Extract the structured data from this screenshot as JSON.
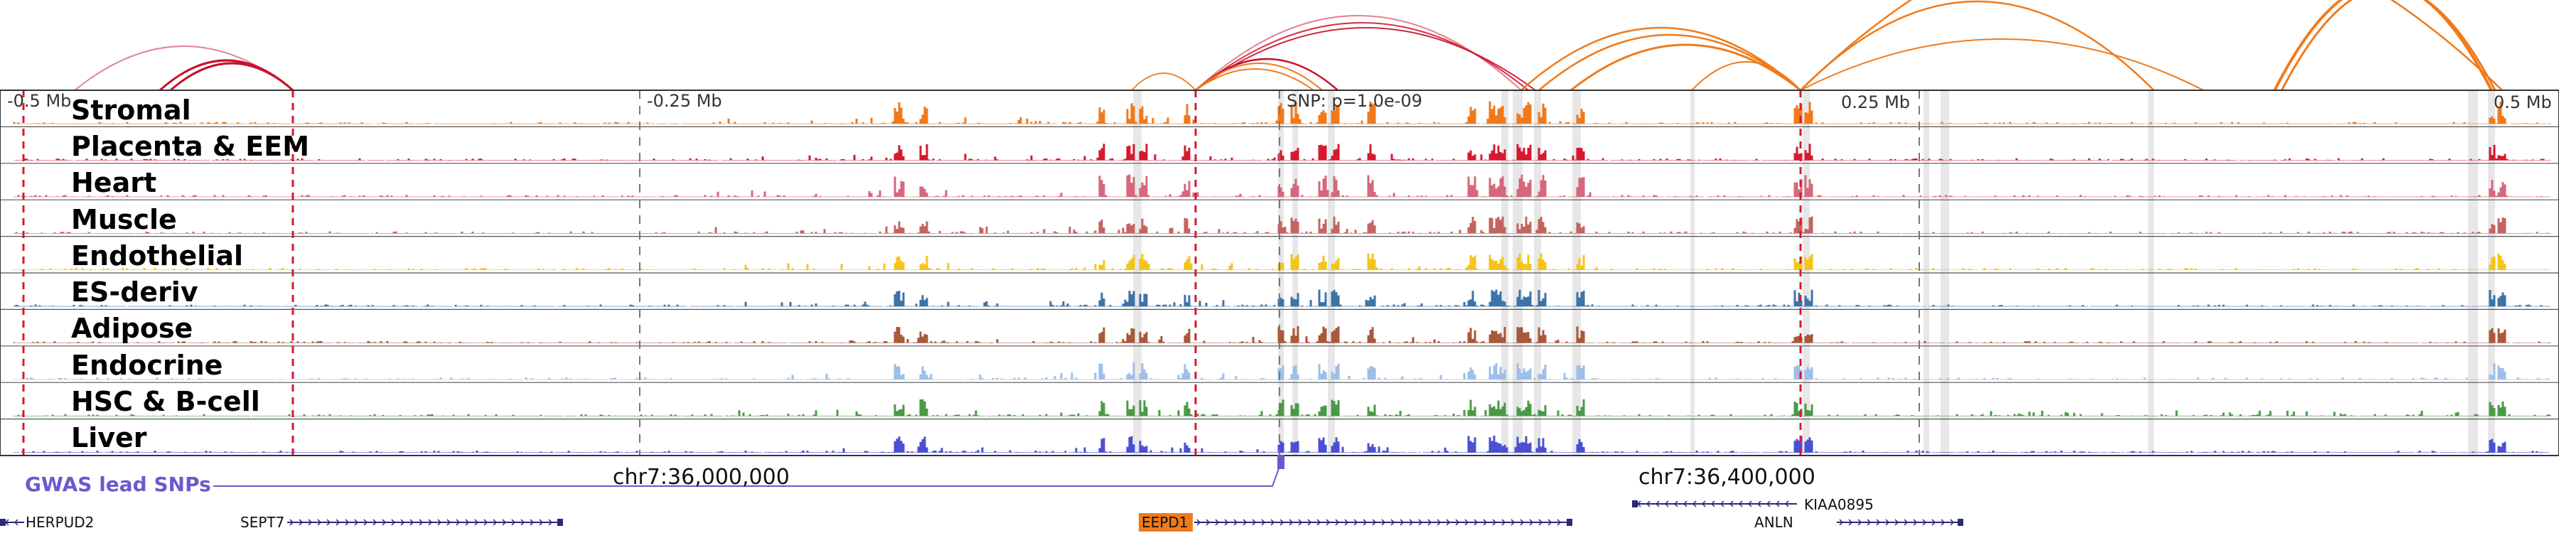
{
  "browser": {
    "axis_labels": [
      "-0.5 Mb",
      "-0.25 Mb",
      "SNP: p=1.0e-09",
      "0.25 Mb",
      "0.5 Mb"
    ],
    "tracks": [
      {
        "name": "Stromal",
        "color": "#f07a1b"
      },
      {
        "name": "Placenta & EEM",
        "color": "#d7192f"
      },
      {
        "name": "Heart",
        "color": "#d6677c"
      },
      {
        "name": "Muscle",
        "color": "#c46461"
      },
      {
        "name": "Endothelial",
        "color": "#f4c518"
      },
      {
        "name": "ES-deriv",
        "color": "#3c73a8"
      },
      {
        "name": "Adipose",
        "color": "#a9583a"
      },
      {
        "name": "Endocrine",
        "color": "#9dbfe9"
      },
      {
        "name": "HSC & B-cell",
        "color": "#4a9a45"
      },
      {
        "name": "Liver",
        "color": "#4b4fd1"
      }
    ],
    "gwas_label": "GWAS lead SNPs",
    "coordinates": [
      "chr7:36,000,000",
      "chr7:36,400,000"
    ],
    "genes": [
      {
        "name": "HERPUD2",
        "highlight": false
      },
      {
        "name": "SEPT7",
        "highlight": false
      },
      {
        "name": "EEPD1",
        "highlight": true
      },
      {
        "name": "KIAA0895",
        "highlight": false
      },
      {
        "name": "ANLN",
        "highlight": false
      }
    ],
    "colors": {
      "gwas": "#6a5acd",
      "gene": "#2a2a7a",
      "highlight_gene": "#f07a1b",
      "loop": "#f07a1b",
      "loop_left": "#c8102e"
    }
  }
}
